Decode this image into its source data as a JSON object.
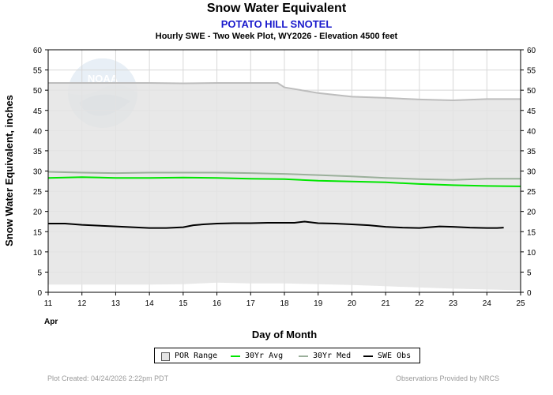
{
  "header": {
    "title": "Snow Water Equivalent",
    "station": "POTATO HILL SNOTEL",
    "description": "Hourly SWE - Two Week Plot, WY2026 -  Elevation 4500 feet"
  },
  "footer": {
    "created": "Plot Created: 04/24/2026 2:22pm PDT",
    "provided": "Observations Provided by NRCS"
  },
  "logo": {
    "text": "NOAA"
  },
  "legend": {
    "items": [
      {
        "label": "POR Range",
        "kind": "box",
        "color": "#e4e4e4"
      },
      {
        "label": "30Yr Avg",
        "kind": "line",
        "color": "#00e600"
      },
      {
        "label": "30Yr Med",
        "kind": "line",
        "color": "#9aaf9a"
      },
      {
        "label": "SWE Obs",
        "kind": "line",
        "color": "#000000"
      }
    ]
  },
  "chart_data": {
    "type": "line",
    "xlabel": "Day of Month",
    "ylabel": "Snow Water Equivalent, inches",
    "month_label": "Apr",
    "xlim": [
      11,
      25
    ],
    "ylim": [
      0,
      60
    ],
    "x_ticks": [
      11,
      12,
      13,
      14,
      15,
      16,
      17,
      18,
      19,
      20,
      21,
      22,
      23,
      24,
      25
    ],
    "y_ticks": [
      0,
      5,
      10,
      15,
      20,
      25,
      30,
      35,
      40,
      45,
      50,
      55,
      60
    ],
    "grid": true,
    "legend_position": "bottom",
    "por_range": {
      "x": [
        11,
        12,
        13,
        14,
        15,
        16,
        17,
        17.8,
        18,
        19,
        20,
        21,
        22,
        23,
        24,
        25
      ],
      "upper": [
        51.8,
        51.8,
        51.8,
        51.8,
        51.7,
        51.8,
        51.8,
        51.8,
        50.7,
        49.3,
        48.4,
        48.1,
        47.7,
        47.5,
        47.8,
        47.8
      ],
      "lower": [
        1.9,
        1.9,
        1.9,
        1.9,
        2.0,
        2.4,
        2.2,
        2.2,
        2.2,
        2.0,
        1.8,
        1.5,
        1.2,
        0.9,
        0.7,
        0.5
      ]
    },
    "series": [
      {
        "name": "30Yr Avg",
        "color": "#00e600",
        "x": [
          11,
          12,
          13,
          14,
          15,
          16,
          17,
          18,
          19,
          20,
          21,
          22,
          23,
          24,
          25
        ],
        "values": [
          28.3,
          28.5,
          28.3,
          28.3,
          28.4,
          28.3,
          28.1,
          28.0,
          27.6,
          27.4,
          27.2,
          26.8,
          26.5,
          26.3,
          26.2
        ]
      },
      {
        "name": "30Yr Med",
        "color": "#9aaf9a",
        "x": [
          11,
          12,
          13,
          14,
          15,
          16,
          17,
          18,
          19,
          20,
          21,
          22,
          23,
          24,
          25
        ],
        "values": [
          29.8,
          29.6,
          29.5,
          29.6,
          29.6,
          29.6,
          29.5,
          29.3,
          29.0,
          28.7,
          28.3,
          28.0,
          27.8,
          28.1,
          28.1
        ]
      },
      {
        "name": "SWE Obs",
        "color": "#000000",
        "x": [
          11,
          11.5,
          12,
          12.5,
          13,
          13.5,
          14,
          14.5,
          15,
          15.3,
          15.6,
          16,
          16.5,
          17,
          17.5,
          18,
          18.3,
          18.6,
          19,
          19.5,
          20,
          20.5,
          21,
          21.5,
          22,
          22.3,
          22.6,
          23,
          23.5,
          24,
          24.3,
          24.5
        ],
        "values": [
          17.0,
          17.0,
          16.7,
          16.5,
          16.3,
          16.1,
          15.9,
          15.9,
          16.1,
          16.6,
          16.8,
          17.0,
          17.1,
          17.1,
          17.2,
          17.2,
          17.2,
          17.5,
          17.1,
          17.0,
          16.8,
          16.6,
          16.2,
          16.0,
          15.9,
          16.1,
          16.3,
          16.2,
          16.0,
          15.9,
          15.9,
          16.0
        ]
      }
    ]
  }
}
